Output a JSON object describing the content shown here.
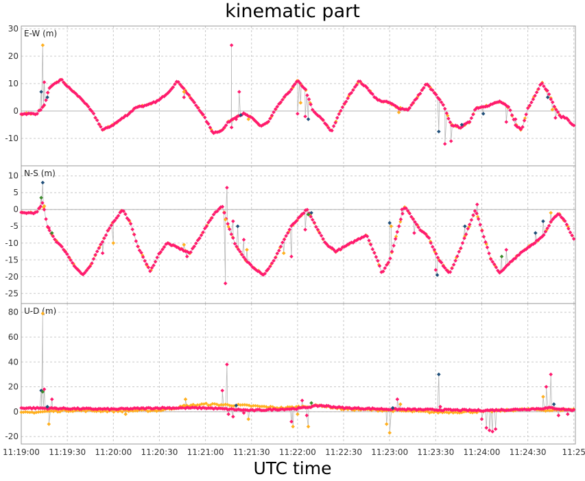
{
  "title": "kinematic part",
  "xlabel": "UTC time",
  "colors": {
    "series_a": "#ff1a6e",
    "series_b": "#ffb020",
    "series_c": "#1f4e79",
    "series_d": "#3a8a2a",
    "connector": "#b8b8b8",
    "grid": "#c8c8c8",
    "frame": "#999999"
  },
  "chart_data": {
    "type": "scatter",
    "x_unit": "seconds since 11:19:00",
    "xlim": [
      0,
      361
    ],
    "x_ticks": [
      0,
      30,
      60,
      90,
      120,
      150,
      180,
      210,
      240,
      270,
      300,
      330,
      360
    ],
    "x_tick_labels": [
      "11:19:00",
      "11:19:30",
      "11:20:00",
      "11:20:30",
      "11:21:00",
      "11:21:30",
      "11:22:00",
      "11:22:30",
      "11:23:00",
      "11:23:30",
      "11:24:00",
      "11:24:30",
      "11:25"
    ],
    "grid": true,
    "panels": [
      {
        "label": "E-W (m)",
        "ylim": [
          -20,
          31
        ],
        "yticks": [
          30,
          20,
          10,
          0,
          -10
        ],
        "profile": [
          [
            0,
            -1
          ],
          [
            10,
            -1
          ],
          [
            15,
            2
          ],
          [
            18,
            8
          ],
          [
            22,
            10
          ],
          [
            26,
            11.5
          ],
          [
            30,
            9
          ],
          [
            40,
            4
          ],
          [
            47,
            -1
          ],
          [
            53,
            -7
          ],
          [
            60,
            -5
          ],
          [
            70,
            -1
          ],
          [
            75,
            1.5
          ],
          [
            82,
            2
          ],
          [
            90,
            4
          ],
          [
            96,
            7
          ],
          [
            102,
            11
          ],
          [
            110,
            5
          ],
          [
            118,
            -1
          ],
          [
            125,
            -8
          ],
          [
            131,
            -7
          ],
          [
            135,
            -4
          ],
          [
            140,
            -2
          ],
          [
            145,
            -1
          ],
          [
            150,
            -2.5
          ],
          [
            156,
            -5.5
          ],
          [
            161,
            -4
          ],
          [
            165,
            0
          ],
          [
            170,
            4
          ],
          [
            176,
            8
          ],
          [
            180,
            11
          ],
          [
            185,
            8
          ],
          [
            190,
            0
          ],
          [
            196,
            -3
          ],
          [
            202,
            -7.5
          ],
          [
            208,
            0
          ],
          [
            214,
            6
          ],
          [
            220,
            11
          ],
          [
            226,
            8
          ],
          [
            232,
            4
          ],
          [
            240,
            3
          ],
          [
            246,
            1
          ],
          [
            252,
            0.5
          ],
          [
            258,
            5
          ],
          [
            264,
            10
          ],
          [
            270,
            6
          ],
          [
            275,
            2
          ],
          [
            280,
            -5
          ],
          [
            286,
            -6
          ],
          [
            292,
            -4
          ],
          [
            296,
            1
          ],
          [
            304,
            2
          ],
          [
            312,
            3.5
          ],
          [
            318,
            1
          ],
          [
            322,
            -5
          ],
          [
            326,
            -7
          ],
          [
            330,
            1
          ],
          [
            335,
            6
          ],
          [
            339,
            10.5
          ],
          [
            343,
            7
          ],
          [
            347,
            2
          ],
          [
            351,
            -2
          ],
          [
            355,
            -2.5
          ],
          [
            361,
            -6
          ]
        ],
        "spikes": [
          [
            14,
            24,
            "b"
          ],
          [
            15,
            10.5,
            "a"
          ],
          [
            13,
            7,
            "c"
          ],
          [
            17,
            5,
            "c"
          ],
          [
            106,
            7,
            "b"
          ],
          [
            106,
            5,
            "a"
          ],
          [
            137,
            24,
            "a"
          ],
          [
            137,
            -6,
            "a"
          ],
          [
            140,
            -3,
            "a"
          ],
          [
            142,
            7,
            "a"
          ],
          [
            143,
            -1.5,
            "c"
          ],
          [
            148,
            -3,
            "b"
          ],
          [
            180,
            -1,
            "a"
          ],
          [
            182,
            3,
            "b"
          ],
          [
            185,
            -2,
            "a"
          ],
          [
            187,
            -3,
            "c"
          ],
          [
            246,
            -0.5,
            "b"
          ],
          [
            272,
            -7.5,
            "c"
          ],
          [
            276,
            -12,
            "a"
          ],
          [
            280,
            -11,
            "a"
          ],
          [
            287,
            -5,
            "c"
          ],
          [
            301,
            -1,
            "c"
          ],
          [
            316,
            -4,
            "a"
          ],
          [
            322,
            -3,
            "a"
          ],
          [
            343,
            5,
            "c"
          ],
          [
            346,
            0.5,
            "b"
          ],
          [
            348,
            -2.5,
            "a"
          ]
        ]
      },
      {
        "label": "N-S (m)",
        "ylim": [
          -28,
          13
        ],
        "yticks": [
          10,
          5,
          0,
          -5,
          -10,
          -15,
          -20,
          -25
        ],
        "profile": [
          [
            0,
            -1
          ],
          [
            10,
            -1
          ],
          [
            14,
            2
          ],
          [
            17,
            -5
          ],
          [
            22,
            -9
          ],
          [
            28,
            -12
          ],
          [
            35,
            -17
          ],
          [
            40,
            -19.5
          ],
          [
            45,
            -17
          ],
          [
            50,
            -12
          ],
          [
            58,
            -5
          ],
          [
            66,
            0
          ],
          [
            71,
            -4
          ],
          [
            76,
            -11
          ],
          [
            84,
            -18.5
          ],
          [
            90,
            -13
          ],
          [
            95,
            -10
          ],
          [
            100,
            -11
          ],
          [
            110,
            -13
          ],
          [
            118,
            -7
          ],
          [
            126,
            -1
          ],
          [
            131,
            1
          ],
          [
            135,
            -5
          ],
          [
            140,
            -11
          ],
          [
            146,
            -15
          ],
          [
            152,
            -17.5
          ],
          [
            158,
            -19.5
          ],
          [
            165,
            -15
          ],
          [
            170,
            -10
          ],
          [
            176,
            -5
          ],
          [
            180,
            -3
          ],
          [
            186,
            0
          ],
          [
            192,
            -5
          ],
          [
            198,
            -10
          ],
          [
            205,
            -12.5
          ],
          [
            215,
            -10
          ],
          [
            225,
            -7.5
          ],
          [
            232,
            -15
          ],
          [
            235,
            -19
          ],
          [
            240,
            -15
          ],
          [
            246,
            -5
          ],
          [
            250,
            1
          ],
          [
            254,
            -2
          ],
          [
            260,
            -6
          ],
          [
            265,
            -8
          ],
          [
            272,
            -15
          ],
          [
            279,
            -19
          ],
          [
            285,
            -13
          ],
          [
            290,
            -7
          ],
          [
            296,
            0
          ],
          [
            300,
            -6
          ],
          [
            306,
            -15
          ],
          [
            312,
            -19
          ],
          [
            318,
            -16
          ],
          [
            325,
            -13
          ],
          [
            334,
            -10
          ],
          [
            340,
            -8
          ],
          [
            346,
            -3
          ],
          [
            350,
            -1
          ],
          [
            355,
            -4
          ],
          [
            361,
            -10
          ]
        ],
        "spikes": [
          [
            14,
            8,
            "c"
          ],
          [
            13,
            3.5,
            "d"
          ],
          [
            15,
            1,
            "b"
          ],
          [
            18,
            -5.5,
            "a"
          ],
          [
            20,
            -7,
            "d"
          ],
          [
            53,
            -13,
            "a"
          ],
          [
            60,
            -10,
            "b"
          ],
          [
            106,
            -10.5,
            "b"
          ],
          [
            108,
            -14,
            "a"
          ],
          [
            133,
            -22,
            "a"
          ],
          [
            133,
            -3,
            "b"
          ],
          [
            134,
            6.5,
            "a"
          ],
          [
            138,
            -3.5,
            "a"
          ],
          [
            141,
            -5,
            "c"
          ],
          [
            145,
            -9,
            "a"
          ],
          [
            147,
            -12,
            "b"
          ],
          [
            171,
            -13,
            "b"
          ],
          [
            176,
            -14,
            "a"
          ],
          [
            185,
            -6,
            "a"
          ],
          [
            187,
            -1.5,
            "d"
          ],
          [
            189,
            -1,
            "c"
          ],
          [
            240,
            -4,
            "c"
          ],
          [
            241,
            -5,
            "b"
          ],
          [
            248,
            0,
            "a"
          ],
          [
            256,
            -7,
            "a"
          ],
          [
            270,
            -18,
            "a"
          ],
          [
            271,
            -19.5,
            "c"
          ],
          [
            289,
            -5,
            "c"
          ],
          [
            297,
            1.5,
            "a"
          ],
          [
            313,
            -14,
            "d"
          ],
          [
            316,
            -12,
            "a"
          ],
          [
            335,
            -7,
            "c"
          ],
          [
            340,
            -3.5,
            "c"
          ],
          [
            345,
            -1,
            "b"
          ]
        ]
      },
      {
        "label": "U-D (m)",
        "ylim": [
          -26,
          87
        ],
        "yticks": [
          80,
          60,
          40,
          20,
          0,
          -20
        ],
        "profile": [
          [
            0,
            3
          ],
          [
            30,
            2.5
          ],
          [
            60,
            2
          ],
          [
            90,
            3
          ],
          [
            120,
            3
          ],
          [
            150,
            1
          ],
          [
            180,
            2.5
          ],
          [
            195,
            5
          ],
          [
            210,
            3
          ],
          [
            240,
            2
          ],
          [
            270,
            1.5
          ],
          [
            300,
            1
          ],
          [
            330,
            2
          ],
          [
            345,
            3
          ],
          [
            361,
            1
          ]
        ],
        "profile_b": [
          [
            0,
            -1
          ],
          [
            30,
            1
          ],
          [
            60,
            0.5
          ],
          [
            90,
            1
          ],
          [
            110,
            5
          ],
          [
            120,
            6
          ],
          [
            145,
            5
          ],
          [
            170,
            3
          ],
          [
            195,
            5
          ],
          [
            210,
            2
          ],
          [
            240,
            1
          ],
          [
            270,
            -0.5
          ],
          [
            300,
            0
          ],
          [
            330,
            2
          ],
          [
            345,
            1
          ],
          [
            361,
            2
          ]
        ],
        "spikes": [
          [
            14,
            79,
            "b"
          ],
          [
            13,
            17,
            "c"
          ],
          [
            14,
            16,
            "d"
          ],
          [
            15,
            18,
            "a"
          ],
          [
            17,
            4,
            "c"
          ],
          [
            18,
            -10,
            "b"
          ],
          [
            20,
            10,
            "a"
          ],
          [
            22,
            3,
            "a"
          ],
          [
            68,
            -2,
            "b"
          ],
          [
            106,
            5,
            "b"
          ],
          [
            107,
            10,
            "b"
          ],
          [
            131,
            17,
            "a"
          ],
          [
            134,
            38,
            "a"
          ],
          [
            135,
            -2,
            "a"
          ],
          [
            138,
            -4,
            "a"
          ],
          [
            140,
            5,
            "c"
          ],
          [
            145,
            -1,
            "a"
          ],
          [
            148,
            -6,
            "b"
          ],
          [
            176,
            -8,
            "a"
          ],
          [
            177,
            -12,
            "b"
          ],
          [
            180,
            -2,
            "b"
          ],
          [
            183,
            9,
            "a"
          ],
          [
            186,
            -3,
            "a"
          ],
          [
            187,
            -12,
            "b"
          ],
          [
            189,
            7,
            "d"
          ],
          [
            238,
            -10,
            "b"
          ],
          [
            240,
            -17,
            "b"
          ],
          [
            242,
            3,
            "c"
          ],
          [
            245,
            10,
            "a"
          ],
          [
            247,
            6,
            "b"
          ],
          [
            272,
            30,
            "c"
          ],
          [
            273,
            4,
            "a"
          ],
          [
            300,
            -6,
            "a"
          ],
          [
            303,
            -13,
            "a"
          ],
          [
            305,
            -15,
            "a"
          ],
          [
            307,
            -16,
            "a"
          ],
          [
            309,
            -14,
            "a"
          ],
          [
            340,
            12,
            "b"
          ],
          [
            342,
            20,
            "a"
          ],
          [
            345,
            30,
            "a"
          ],
          [
            347,
            6,
            "c"
          ],
          [
            350,
            -3,
            "a"
          ],
          [
            356,
            -2,
            "a"
          ]
        ]
      }
    ]
  }
}
